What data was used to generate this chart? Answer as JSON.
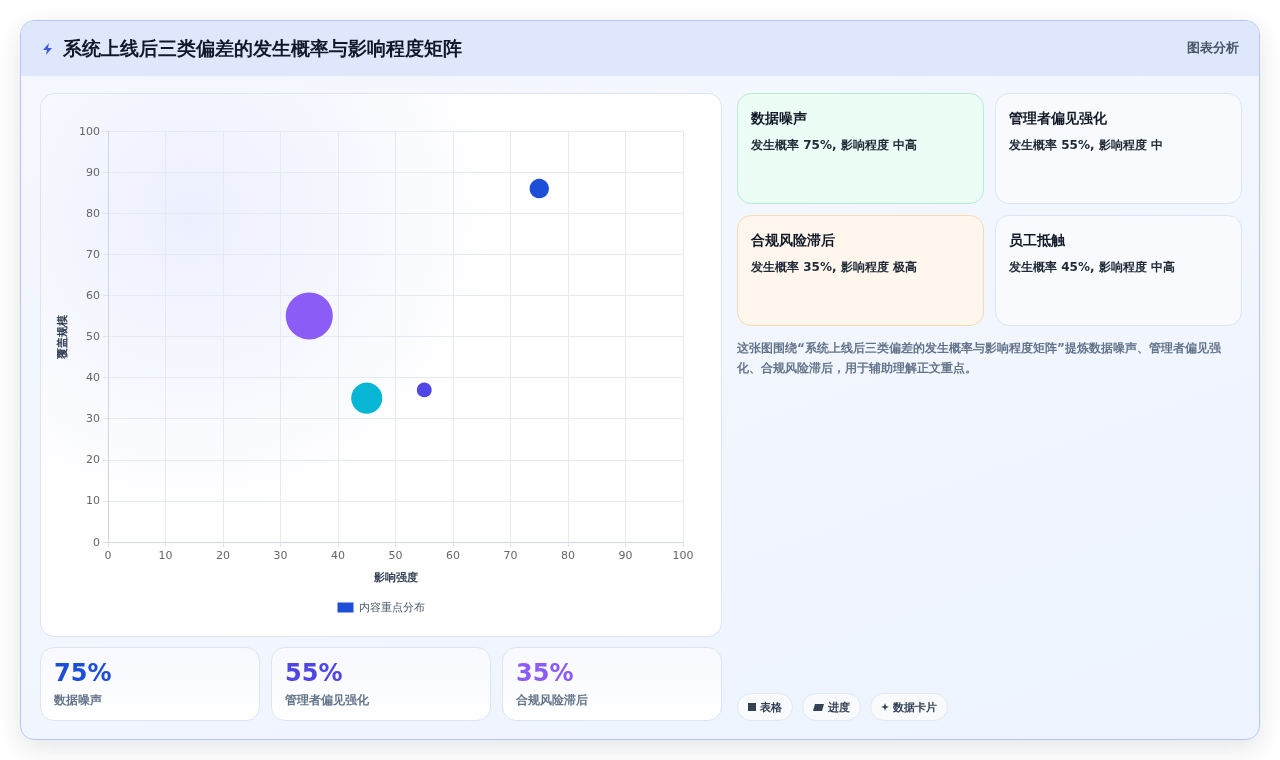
{
  "chart_data": {
    "type": "bubble",
    "title": "系统上线后三类偏差的发生概率与影响程度矩阵",
    "xlabel": "影响强度",
    "ylabel": "覆盖规模",
    "series": [
      {
        "name": "内容重点分布",
        "x": [
          75,
          55,
          35,
          45
        ],
        "values": [
          86,
          37,
          55,
          35
        ],
        "sizes": [
          0.17,
          0.1,
          1,
          0.44
        ],
        "colors": [
          "#1d4ed8",
          "#4f46e5",
          "#8b5cf6",
          "#06b6d4"
        ]
      }
    ],
    "xlim": [
      0,
      100
    ],
    "xticks": [
      0,
      10,
      20,
      30,
      40,
      50,
      60,
      70,
      80,
      90,
      100
    ],
    "ylim": [
      0,
      100
    ],
    "yticks": [
      0,
      10,
      20,
      30,
      40,
      50,
      60,
      70,
      80,
      90,
      100
    ],
    "grid": true,
    "legend": "bottom",
    "marker": "circle",
    "annotations": [
      "图表分析",
      "数据噪声",
      "发生概率 75%, 影响程度 中高",
      "管理者偏见强化",
      "发生概率 55%, 影响程度 中",
      "合规风险滞后",
      "发生概率 35%, 影响程度 极高",
      "员工抵触",
      "发生概率 45%, 影响程度 中高",
      "这张图围绕“系统上线后三类偏差的发生概率与影响程度矩阵”提炼数据噪声、管理者偏见强化、合规风险滞后，用于辅助理解正文重点。",
      "75%",
      "数据噪声",
      "55%",
      "管理者偏见强化",
      "35%",
      "合规风险滞后",
      "表格",
      "进度",
      "数据卡片"
    ]
  }
}
